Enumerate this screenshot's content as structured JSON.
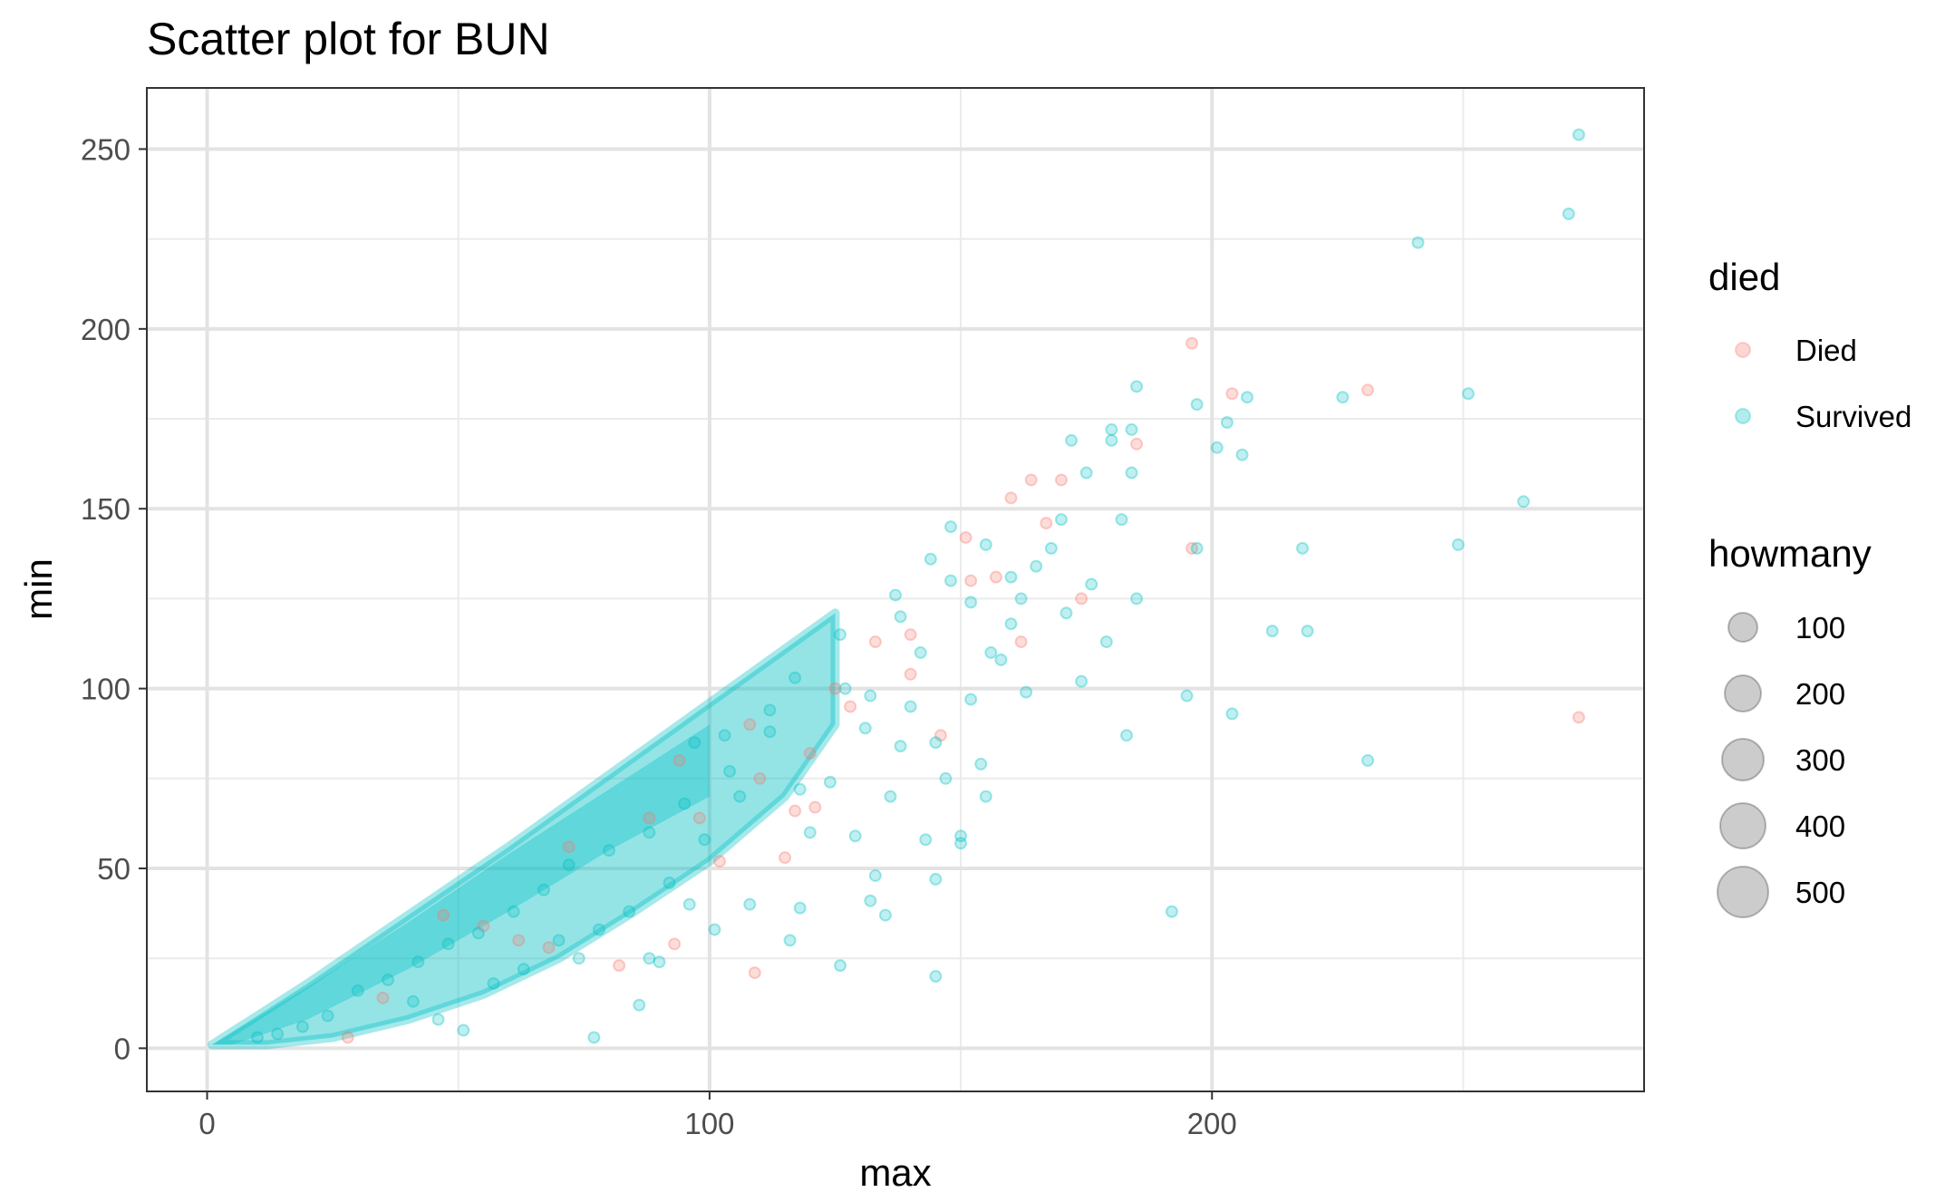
{
  "chart_data": {
    "type": "scatter",
    "title": "Scatter plot for BUN",
    "xlabel": "max",
    "ylabel": "min",
    "xlim": [
      -12,
      286
    ],
    "ylim": [
      -12,
      267
    ],
    "x_ticks": [
      0,
      100,
      200
    ],
    "y_ticks": [
      0,
      50,
      100,
      150,
      200,
      250
    ],
    "grid": true,
    "legend_placement": "right",
    "color_legend": {
      "title": "died",
      "entries": [
        {
          "label": "Died",
          "color": "#F8766D"
        },
        {
          "label": "Survived",
          "color": "#00BFC4"
        }
      ]
    },
    "size_legend": {
      "title": "howmany",
      "entries": [
        100,
        200,
        300,
        400,
        500
      ]
    },
    "series": [
      {
        "name": "Died",
        "color": "#F8766D",
        "points": [
          [
            196,
            196
          ],
          [
            204,
            182
          ],
          [
            231,
            183
          ],
          [
            185,
            168
          ],
          [
            196,
            139
          ],
          [
            273,
            92
          ],
          [
            109,
            21
          ],
          [
            164,
            158
          ],
          [
            170,
            158
          ],
          [
            174,
            125
          ],
          [
            162,
            113
          ],
          [
            160,
            153
          ],
          [
            151,
            142
          ],
          [
            133,
            113
          ],
          [
            128,
            95
          ],
          [
            120,
            82
          ],
          [
            115,
            53
          ],
          [
            117,
            66
          ],
          [
            121,
            67
          ],
          [
            93,
            29
          ],
          [
            82,
            23
          ],
          [
            62,
            30
          ],
          [
            68,
            28
          ],
          [
            47,
            37
          ],
          [
            35,
            14
          ],
          [
            28,
            3
          ],
          [
            94,
            80
          ],
          [
            88,
            64
          ],
          [
            102,
            52
          ],
          [
            146,
            87
          ],
          [
            140,
            104
          ],
          [
            152,
            130
          ],
          [
            167,
            146
          ],
          [
            157,
            131
          ],
          [
            108,
            90
          ],
          [
            72,
            56
          ],
          [
            55,
            34
          ],
          [
            140,
            115
          ],
          [
            125,
            100
          ],
          [
            110,
            75
          ],
          [
            98,
            64
          ]
        ]
      },
      {
        "name": "Survived",
        "color": "#00BFC4",
        "points": [
          [
            273,
            254
          ],
          [
            271,
            232
          ],
          [
            241,
            224
          ],
          [
            251,
            182
          ],
          [
            262,
            152
          ],
          [
            249,
            140
          ],
          [
            231,
            80
          ],
          [
            226,
            181
          ],
          [
            218,
            139
          ],
          [
            219,
            116
          ],
          [
            212,
            116
          ],
          [
            207,
            181
          ],
          [
            206,
            165
          ],
          [
            201,
            167
          ],
          [
            203,
            174
          ],
          [
            197,
            179
          ],
          [
            197,
            139
          ],
          [
            204,
            93
          ],
          [
            195,
            98
          ],
          [
            192,
            38
          ],
          [
            185,
            184
          ],
          [
            184,
            172
          ],
          [
            183,
            87
          ],
          [
            185,
            125
          ],
          [
            184,
            160
          ],
          [
            180,
            172
          ],
          [
            180,
            169
          ],
          [
            172,
            169
          ],
          [
            175,
            160
          ],
          [
            170,
            147
          ],
          [
            176,
            129
          ],
          [
            174,
            102
          ],
          [
            171,
            121
          ],
          [
            179,
            113
          ],
          [
            182,
            147
          ],
          [
            163,
            99
          ],
          [
            154,
            79
          ],
          [
            158,
            108
          ],
          [
            155,
            70
          ],
          [
            150,
            59
          ],
          [
            145,
            47
          ],
          [
            145,
            20
          ],
          [
            126,
            23
          ],
          [
            116,
            30
          ],
          [
            86,
            12
          ],
          [
            77,
            3
          ],
          [
            101,
            33
          ],
          [
            90,
            24
          ],
          [
            129,
            59
          ],
          [
            124,
            74
          ],
          [
            133,
            48
          ],
          [
            132,
            41
          ],
          [
            135,
            37
          ],
          [
            150,
            57
          ],
          [
            147,
            75
          ],
          [
            152,
            97
          ],
          [
            143,
            58
          ],
          [
            138,
            84
          ],
          [
            162,
            125
          ],
          [
            165,
            134
          ],
          [
            160,
            131
          ],
          [
            168,
            139
          ],
          [
            155,
            140
          ],
          [
            148,
            145
          ],
          [
            148,
            130
          ],
          [
            138,
            120
          ],
          [
            142,
            110
          ],
          [
            127,
            100
          ],
          [
            131,
            89
          ],
          [
            136,
            70
          ],
          [
            112,
            88
          ],
          [
            118,
            72
          ],
          [
            120,
            60
          ],
          [
            106,
            70
          ],
          [
            99,
            58
          ],
          [
            92,
            46
          ],
          [
            84,
            38
          ],
          [
            78,
            33
          ],
          [
            70,
            30
          ],
          [
            63,
            22
          ],
          [
            57,
            18
          ],
          [
            51,
            5
          ],
          [
            46,
            8
          ],
          [
            41,
            13
          ],
          [
            118,
            39
          ],
          [
            108,
            40
          ],
          [
            96,
            40
          ],
          [
            88,
            25
          ],
          [
            74,
            25
          ],
          [
            140,
            95
          ],
          [
            145,
            85
          ],
          [
            132,
            98
          ],
          [
            156,
            110
          ],
          [
            160,
            118
          ],
          [
            152,
            124
          ],
          [
            144,
            136
          ],
          [
            137,
            126
          ],
          [
            126,
            115
          ],
          [
            117,
            103
          ],
          [
            103,
            87
          ],
          [
            97,
            85
          ],
          [
            112,
            94
          ],
          [
            104,
            77
          ],
          [
            95,
            68
          ],
          [
            88,
            60
          ],
          [
            80,
            55
          ],
          [
            72,
            51
          ],
          [
            67,
            44
          ],
          [
            61,
            38
          ],
          [
            54,
            32
          ],
          [
            48,
            29
          ],
          [
            42,
            24
          ],
          [
            36,
            19
          ],
          [
            30,
            16
          ],
          [
            24,
            9
          ],
          [
            19,
            6
          ],
          [
            14,
            4
          ],
          [
            10,
            3
          ]
        ]
      }
    ]
  }
}
